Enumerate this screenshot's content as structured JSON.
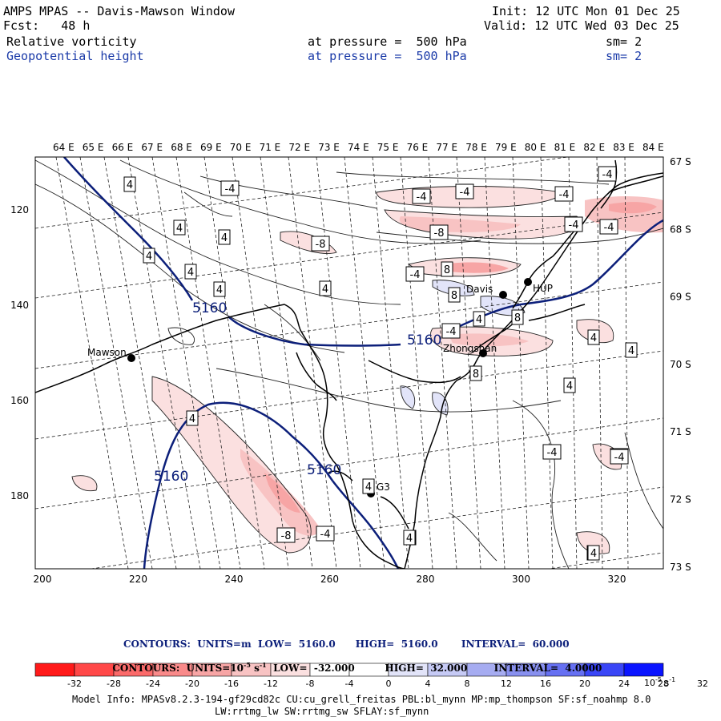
{
  "header": {
    "title": "AMPS MPAS -- Davis-Mawson Window",
    "forecast": "Fcst:   48 h",
    "init": "Init: 12 UTC Mon 01 Dec 25",
    "valid": "Valid: 12 UTC Wed 03 Dec 25",
    "field1_name": "Relative vorticity",
    "field1_level": "at pressure =  500 hPa",
    "field1_smooth": "sm= 2",
    "field2_name": "Geopotential height",
    "field2_level": "at pressure =  500 hPa",
    "field2_smooth": "sm= 2"
  },
  "map": {
    "top_longitude_labels": [
      "64 E",
      "65 E",
      "66 E",
      "67 E",
      "68 E",
      "69 E",
      "70 E",
      "71 E",
      "72 E",
      "73 E",
      "74 E",
      "75 E",
      "76 E",
      "77 E",
      "78 E",
      "79 E",
      "80 E",
      "81 E",
      "82 E",
      "83 E",
      "84 E"
    ],
    "right_latitude_labels": [
      "67 S",
      "68 S",
      "69 S",
      "70 S",
      "71 S",
      "72 S",
      "73 S"
    ],
    "x_axis_labels": [
      "200",
      "220",
      "240",
      "260",
      "280",
      "300",
      "320"
    ],
    "y_axis_labels": [
      "120",
      "140",
      "160",
      "180"
    ],
    "stations": [
      {
        "name": "Mawson"
      },
      {
        "name": "Davis"
      },
      {
        "name": "Zhongshan"
      },
      {
        "name": "HUP"
      },
      {
        "name": "G3"
      }
    ],
    "height_contour_labels": [
      "5160",
      "5160",
      "5160",
      "5160"
    ],
    "vorticity_labels": [
      "4",
      "-4",
      "4",
      "4",
      "4",
      "4",
      "4",
      "4",
      "-4",
      "-4",
      "-4",
      "-4",
      "-8",
      "-4",
      "-4",
      "-8",
      "-4",
      "8",
      "8",
      "8",
      "4",
      "-4",
      "4",
      "4",
      "8",
      "4",
      "4",
      "-4",
      "-4",
      "4",
      "4",
      "4",
      "-8",
      "-4",
      "4",
      "4",
      "-4"
    ]
  },
  "contour_info": {
    "height_line": "CONTOURS:  UNITS=m  LOW=  5160.0      HIGH=  5160.0       INTERVAL=  60.000",
    "vort_line_prefix": "CONTOURS:  UNITS=10",
    "vort_line_exp": "-5",
    "vort_line_mid": " s",
    "vort_line_exp2": "-1",
    "vort_line_suffix": "  LOW=  -32.000         HIGH=  32.000        INTERVAL=  4.0000"
  },
  "colorbar": {
    "colors": [
      "#ff1a1a",
      "#ff4848",
      "#fb6a6a",
      "#f98a8a",
      "#f7a5a5",
      "#f8c3c3",
      "#fbe0e0",
      "#ffffff",
      "#ffffff",
      "#e2e4f9",
      "#c6caf5",
      "#a6acf1",
      "#8890ef",
      "#6670f2",
      "#3a46f6",
      "#0a14ff"
    ],
    "tick_labels": [
      "-32",
      "-28",
      "-24",
      "-20",
      "-16",
      "-12",
      "-8",
      "-4",
      "0",
      "4",
      "8",
      "12",
      "16",
      "20",
      "24",
      "28",
      "32"
    ],
    "units_label": "10",
    "units_exp": "-5",
    "units_suffix": " s",
    "units_exp2": "-1"
  },
  "model_info": {
    "line1": "Model Info: MPASv8.2.3-194-gf29cd82c CU:cu_grell_freitas PBL:bl_mynn MP:mp_thompson SF:sf_noahmp 8.0",
    "line2": "LW:rrtmg_lw SW:rrtmg_sw SFLAY:sf_mynn"
  },
  "colors": {
    "height_contour": "#0c1f7a",
    "header_blue": "#1a3aa8"
  }
}
